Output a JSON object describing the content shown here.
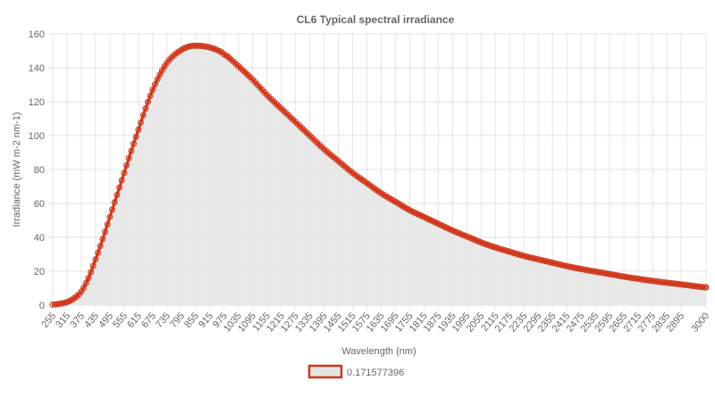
{
  "chart_data": {
    "type": "area",
    "title": "CL6 Typical spectral irradiance",
    "xlabel": "Wavelength (nm)",
    "ylabel": "Irradiance  (mW m-2 nm-1)",
    "ylim": [
      0,
      160
    ],
    "yticks": [
      0,
      20,
      40,
      60,
      80,
      100,
      120,
      140,
      160
    ],
    "xlim": [
      255,
      3000
    ],
    "xticks": [
      255,
      315,
      375,
      435,
      495,
      555,
      615,
      675,
      735,
      795,
      855,
      915,
      975,
      1035,
      1095,
      1155,
      1215,
      1275,
      1335,
      1395,
      1455,
      1515,
      1575,
      1635,
      1695,
      1755,
      1815,
      1875,
      1935,
      1995,
      2055,
      2115,
      2175,
      2235,
      2295,
      2355,
      2415,
      2475,
      2535,
      2595,
      2655,
      2715,
      2775,
      2835,
      2895,
      3000
    ],
    "grid": true,
    "legend_position": "bottom",
    "series": [
      {
        "name": "0.171577396",
        "color": "#d0361a",
        "fill": "#e5e5e5",
        "x": [
          255,
          285,
          315,
          345,
          375,
          405,
          435,
          465,
          495,
          525,
          555,
          585,
          615,
          645,
          675,
          705,
          735,
          765,
          795,
          825,
          855,
          885,
          915,
          945,
          975,
          1035,
          1095,
          1155,
          1215,
          1275,
          1335,
          1395,
          1455,
          1515,
          1575,
          1635,
          1695,
          1755,
          1815,
          1875,
          1935,
          1995,
          2055,
          2115,
          2175,
          2235,
          2295,
          2355,
          2415,
          2475,
          2535,
          2595,
          2655,
          2715,
          2775,
          2835,
          2895,
          3000
        ],
        "values": [
          0.3,
          0.8,
          1.8,
          4,
          8,
          16,
          27,
          39,
          52,
          65,
          78,
          91,
          103.5,
          116,
          127,
          136,
          143,
          147.5,
          150.5,
          152.5,
          153,
          152.8,
          152,
          150.5,
          148,
          141,
          133,
          124,
          116,
          108,
          100,
          92,
          85,
          78,
          72,
          66,
          61,
          56,
          52,
          48,
          44,
          40.5,
          37,
          34,
          31.5,
          29,
          27,
          25,
          23,
          21.3,
          19.8,
          18.3,
          16.8,
          15.5,
          14.3,
          13.2,
          12.2,
          10.5
        ]
      }
    ]
  }
}
